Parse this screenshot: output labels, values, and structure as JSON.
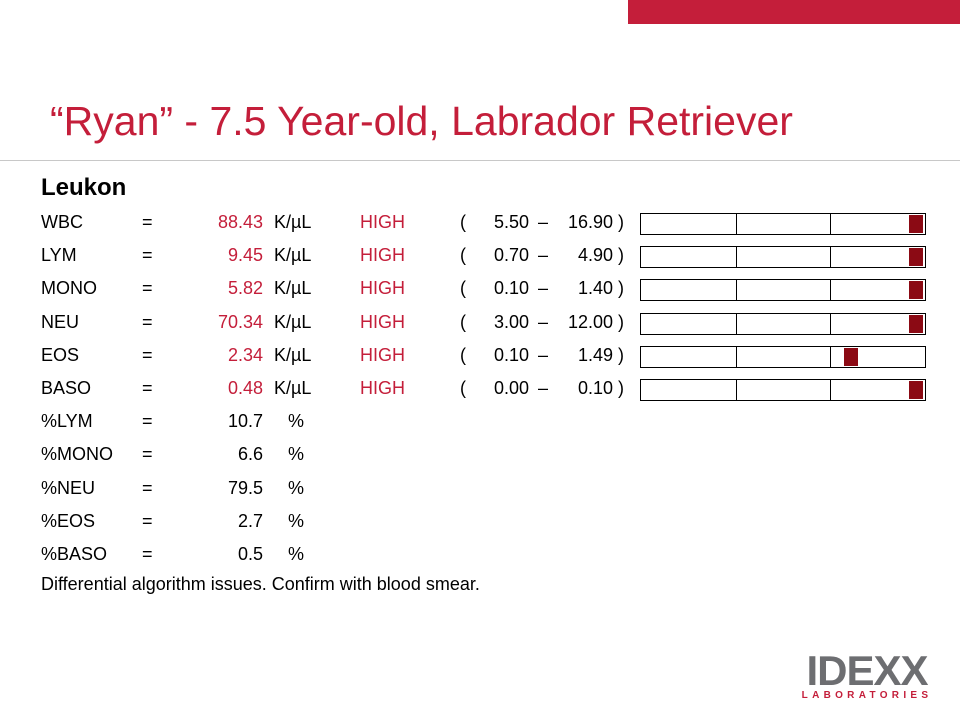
{
  "slide": {
    "title": "“Ryan” - 7.5 Year-old, Labrador Retriever",
    "section": "Leukon",
    "footnote": "Differential algorithm issues.  Confirm with blood smear.",
    "accent_color": "#c41e3a",
    "marker_color": "#8b0a14"
  },
  "rows": [
    {
      "name": "WBC",
      "eq": "=",
      "value": "88.43",
      "unit": "K/µL",
      "flag": "HIGH",
      "lp": "(",
      "low": "5.50",
      "dash": "–",
      "high": "16.90",
      "rp": ")",
      "gauge_level": 0.97
    },
    {
      "name": "LYM",
      "eq": "=",
      "value": "9.45",
      "unit": "K/µL",
      "flag": "HIGH",
      "lp": "(",
      "low": "0.70",
      "dash": "–",
      "high": "4.90",
      "rp": ")",
      "gauge_level": 0.97
    },
    {
      "name": "MONO",
      "eq": "=",
      "value": "5.82",
      "unit": "K/µL",
      "flag": "HIGH",
      "lp": "(",
      "low": "0.10",
      "dash": "–",
      "high": "1.40",
      "rp": ")",
      "gauge_level": 0.97
    },
    {
      "name": "NEU",
      "eq": "=",
      "value": "70.34",
      "unit": "K/µL",
      "flag": "HIGH",
      "lp": "(",
      "low": "3.00",
      "dash": "–",
      "high": "12.00",
      "rp": ")",
      "gauge_level": 0.97
    },
    {
      "name": "EOS",
      "eq": "=",
      "value": "2.34",
      "unit": "K/µL",
      "flag": "HIGH",
      "lp": "(",
      "low": "0.10",
      "dash": "–",
      "high": "1.49",
      "rp": ")",
      "gauge_level": 0.74
    },
    {
      "name": "BASO",
      "eq": "=",
      "value": "0.48",
      "unit": "K/µL",
      "flag": "HIGH",
      "lp": "(",
      "low": "0.00",
      "dash": "–",
      "high": "0.10",
      "rp": ")",
      "gauge_level": 0.97
    },
    {
      "name": "%LYM",
      "eq": "=",
      "value": "10.7",
      "pct": "%"
    },
    {
      "name": "%MONO",
      "eq": "=",
      "value": "6.6",
      "pct": "%"
    },
    {
      "name": "%NEU",
      "eq": "=",
      "value": "79.5",
      "pct": "%"
    },
    {
      "name": "%EOS",
      "eq": "=",
      "value": "2.7",
      "pct": "%"
    },
    {
      "name": "%BASO",
      "eq": "=",
      "value": "0.5",
      "pct": "%"
    }
  ],
  "logo": {
    "word": "IDEXX",
    "subtitle": "LABORATORIES"
  }
}
